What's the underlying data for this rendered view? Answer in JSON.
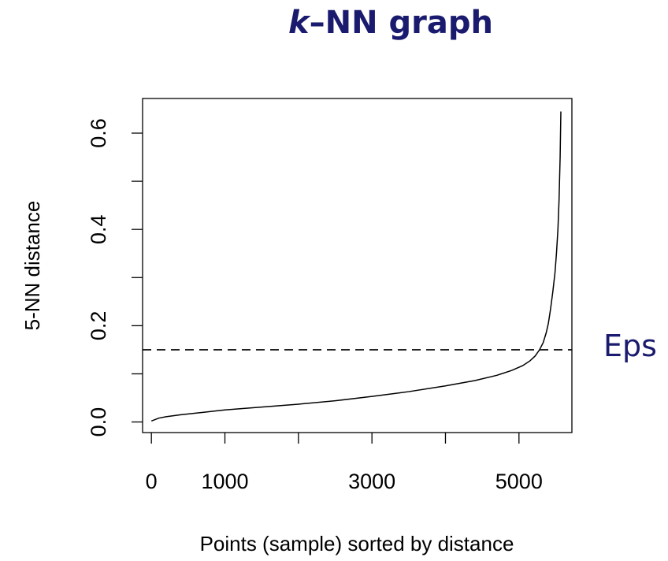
{
  "title_k": "k",
  "title_rest": "–NN graph",
  "eps_label": "Eps",
  "colors": {
    "title": "#1a1a6e",
    "eps": "#1a1a6e",
    "axis": "#000000"
  },
  "chart_data": {
    "type": "line",
    "xlabel": "Points (sample) sorted by distance",
    "ylabel": "5-NN distance",
    "xlim": [
      -120,
      5720
    ],
    "ylim": [
      -0.022,
      0.672
    ],
    "x_ticks": [
      0,
      1000,
      2000,
      3000,
      4000,
      5000
    ],
    "x_tick_labels": [
      "0",
      "1000",
      "",
      "3000",
      "",
      "5000"
    ],
    "y_ticks": [
      0.0,
      0.1,
      0.2,
      0.3,
      0.4,
      0.5,
      0.6
    ],
    "y_tick_labels": [
      "0.0",
      "",
      "0.2",
      "",
      "0.4",
      "",
      "0.6"
    ],
    "grid": false,
    "threshold": {
      "label": "Eps",
      "y": 0.15,
      "style": "dashed"
    },
    "series": [
      {
        "x": [
          0,
          100,
          200,
          400,
          700,
          1000,
          1500,
          2000,
          2500,
          3000,
          3500,
          4000,
          4400,
          4700,
          4900,
          5050,
          5150,
          5220,
          5280,
          5330,
          5370,
          5400,
          5430,
          5460,
          5490,
          5510,
          5530,
          5545,
          5560,
          5570
        ],
        "y": [
          0.002,
          0.008,
          0.011,
          0.015,
          0.02,
          0.025,
          0.031,
          0.037,
          0.044,
          0.053,
          0.063,
          0.075,
          0.086,
          0.097,
          0.107,
          0.117,
          0.127,
          0.137,
          0.15,
          0.165,
          0.185,
          0.205,
          0.235,
          0.27,
          0.31,
          0.35,
          0.4,
          0.46,
          0.55,
          0.645
        ]
      }
    ]
  }
}
